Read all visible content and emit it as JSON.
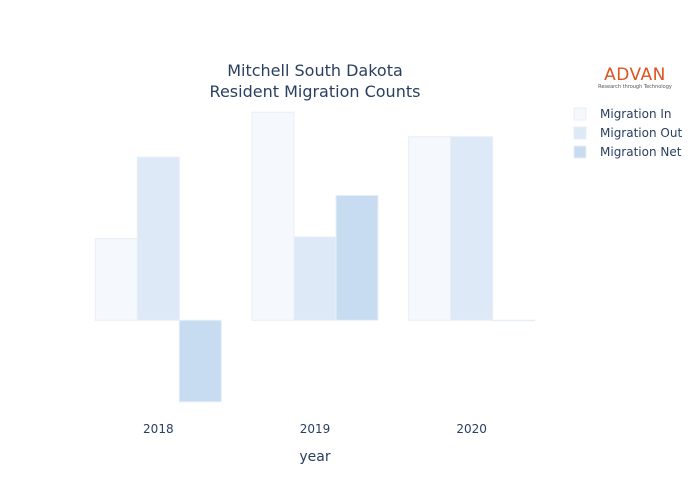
{
  "logo": {
    "brand": "ADVAN",
    "tagline": "Research through Technology"
  },
  "colors": {
    "migration_in": "#f5f9fd",
    "migration_out": "#dde9f6",
    "migration_net": "#c7dcf0",
    "text": "#2a3f5f"
  },
  "chart_data": {
    "type": "bar",
    "title": "Mitchell South Dakota\nResident Migration Counts",
    "xlabel": "year",
    "ylabel": "",
    "categories": [
      "2018",
      "2019",
      "2020"
    ],
    "series": [
      {
        "name": "Migration In",
        "values": [
          100,
          255,
          225
        ]
      },
      {
        "name": "Migration Out",
        "values": [
          200,
          102,
          225
        ]
      },
      {
        "name": "Migration Net",
        "values": [
          -100,
          153,
          0
        ]
      }
    ],
    "ylim": [
      -110,
      270
    ],
    "grid": false,
    "legend": "top-right"
  }
}
